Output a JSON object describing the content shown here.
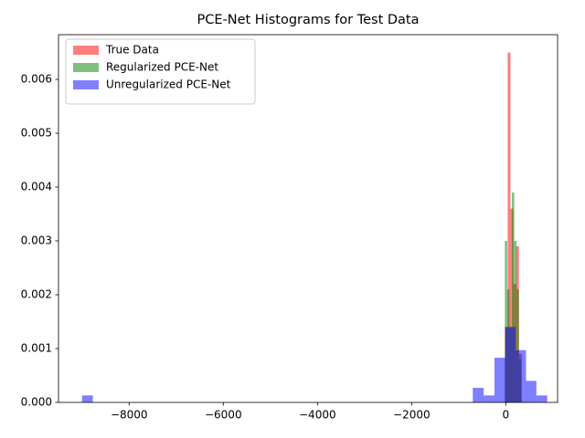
{
  "chart_data": {
    "type": "histogram",
    "title": "PCE-Net Histograms for Test Data",
    "xlim": [
      -9500,
      1100
    ],
    "ylim": [
      0,
      0.00683
    ],
    "xticks": [
      {
        "value": -8000,
        "label": "−8000"
      },
      {
        "value": -6000,
        "label": "−6000"
      },
      {
        "value": -4000,
        "label": "−4000"
      },
      {
        "value": -2000,
        "label": "−2000"
      },
      0
    ],
    "yticks": [
      {
        "value": 0,
        "label": "0.000"
      },
      {
        "value": 0.001,
        "label": "0.001"
      },
      {
        "value": 0.002,
        "label": "0.002"
      },
      {
        "value": 0.003,
        "label": "0.003"
      },
      {
        "value": 0.004,
        "label": "0.004"
      },
      {
        "value": 0.005,
        "label": "0.005"
      },
      {
        "value": 0.006,
        "label": "0.006"
      }
    ],
    "legend": "upper left",
    "series": [
      {
        "name": "True Data",
        "color": "#ff0000",
        "bins": [
          -20,
          40,
          100,
          160,
          220,
          280,
          340
        ],
        "values": [
          0.0014,
          0.0065,
          0.0036,
          0.0022,
          0.0029,
          0.0009
        ]
      },
      {
        "name": "Regularized PCE-Net",
        "color": "#008000",
        "bins": [
          -20,
          30,
          80,
          130,
          180,
          230,
          280,
          330
        ],
        "values": [
          0.003,
          0.0021,
          0.0014,
          0.0039,
          0.003,
          0.0021,
          0.0008
        ]
      },
      {
        "name": "Unregularized PCE-Net",
        "color": "#0000ff",
        "bins": [
          -9000,
          -8770,
          -700,
          -470,
          -240,
          -10,
          210,
          430,
          650,
          880
        ],
        "values": [
          0.00013,
          0,
          0.00027,
          0.00013,
          0.00083,
          0.0014,
          0.00097,
          0.0004,
          0.00013
        ]
      }
    ]
  }
}
